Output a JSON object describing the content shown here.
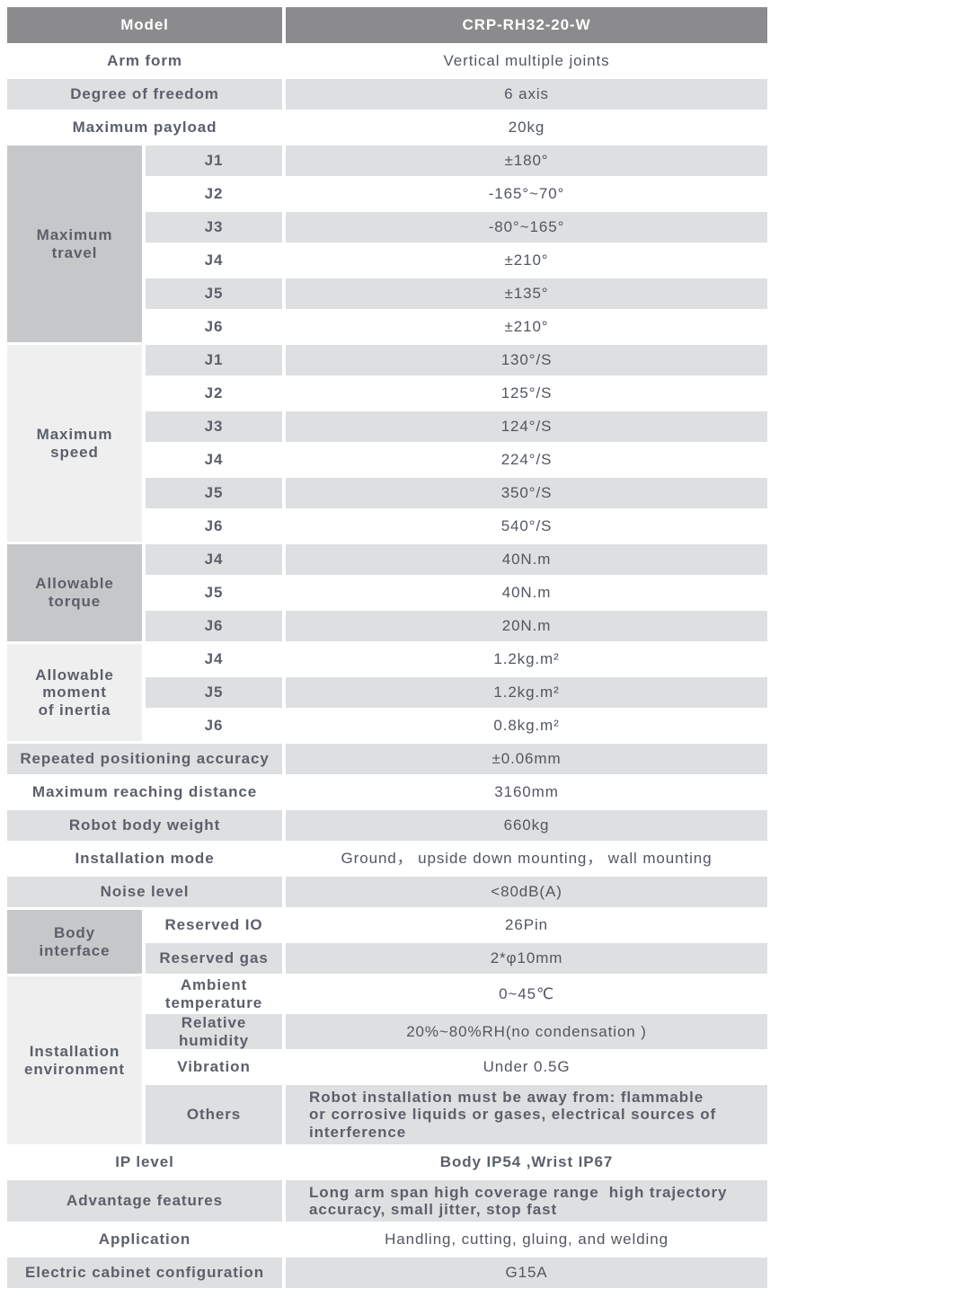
{
  "colors": {
    "header_bg": "#8b8b8d",
    "header_text": "#ffffff",
    "row_gray": "#dedfe0",
    "row_white": "#ffffff",
    "group_cell_dark": "#c6c7c9",
    "group_cell_light": "#efeff0",
    "label_text": "#5b606a",
    "value_text": "#52575f"
  },
  "table": {
    "rows": [
      {
        "kind": "header",
        "size": "hdr",
        "label": "Model",
        "value": "CRP-RH32-20-W"
      },
      {
        "kind": "single",
        "shade": "w",
        "label": "Arm form",
        "value": "Vertical multiple joints"
      },
      {
        "kind": "single",
        "shade": "g",
        "label": "Degree of freedom",
        "value": "6 axis"
      },
      {
        "kind": "single",
        "shade": "w",
        "label": "Maximum payload",
        "value": "20kg"
      },
      {
        "kind": "group",
        "shade": "g",
        "group": {
          "label": "Maximum\ntravel",
          "span": 6,
          "tone": "dark"
        },
        "sub": "J1",
        "value": "±180°"
      },
      {
        "kind": "group",
        "shade": "w",
        "sub": "J2",
        "value": "-165°~70°"
      },
      {
        "kind": "group",
        "shade": "g",
        "sub": "J3",
        "value": "-80°~165°"
      },
      {
        "kind": "group",
        "shade": "w",
        "sub": "J4",
        "value": "±210°"
      },
      {
        "kind": "group",
        "shade": "g",
        "sub": "J5",
        "value": "±135°"
      },
      {
        "kind": "group",
        "shade": "w",
        "sub": "J6",
        "value": "±210°"
      },
      {
        "kind": "group",
        "shade": "g",
        "group": {
          "label": "Maximum\nspeed",
          "span": 6,
          "tone": "light"
        },
        "sub": "J1",
        "value": "130°/S"
      },
      {
        "kind": "group",
        "shade": "w",
        "sub": "J2",
        "value": "125°/S"
      },
      {
        "kind": "group",
        "shade": "g",
        "sub": "J3",
        "value": "124°/S"
      },
      {
        "kind": "group",
        "shade": "w",
        "sub": "J4",
        "value": "224°/S"
      },
      {
        "kind": "group",
        "shade": "g",
        "sub": "J5",
        "value": "350°/S"
      },
      {
        "kind": "group",
        "shade": "w",
        "sub": "J6",
        "value": "540°/S"
      },
      {
        "kind": "group",
        "shade": "g",
        "group": {
          "label": "Allowable\ntorque",
          "span": 3,
          "tone": "dark"
        },
        "sub": "J4",
        "value": "40N.m"
      },
      {
        "kind": "group",
        "shade": "w",
        "sub": "J5",
        "value": "40N.m"
      },
      {
        "kind": "group",
        "shade": "g",
        "sub": "J6",
        "value": "20N.m"
      },
      {
        "kind": "group",
        "shade": "w",
        "group": {
          "label": "Allowable\nmoment\nof inertia",
          "span": 3,
          "tone": "light"
        },
        "sub": "J4",
        "value": "1.2kg.m²"
      },
      {
        "kind": "group",
        "shade": "g",
        "sub": "J5",
        "value": "1.2kg.m²"
      },
      {
        "kind": "group",
        "shade": "w",
        "sub": "J6",
        "value": "0.8kg.m²"
      },
      {
        "kind": "single",
        "shade": "g",
        "label": "Repeated positioning accuracy",
        "value": "±0.06mm"
      },
      {
        "kind": "single",
        "shade": "w",
        "label": "Maximum reaching distance",
        "value": "3160mm"
      },
      {
        "kind": "single",
        "shade": "g",
        "label": "Robot body weight",
        "value": "660kg"
      },
      {
        "kind": "single",
        "shade": "w",
        "label": "Installation mode",
        "value": "Ground， upside down mounting， wall mounting"
      },
      {
        "kind": "single",
        "shade": "g",
        "label": "Noise level",
        "value": "<80dB(A)"
      },
      {
        "kind": "group",
        "shade": "w",
        "group": {
          "label": "Body\ninterface",
          "span": 2,
          "tone": "dark"
        },
        "sub": "Reserved IO",
        "value": "26Pin"
      },
      {
        "kind": "group",
        "shade": "g",
        "sub": "Reserved gas",
        "value": "2*φ10mm"
      },
      {
        "kind": "group",
        "shade": "w",
        "group": {
          "label": "Installation\nenvironment",
          "span": 4,
          "tone": "light"
        },
        "sub": "Ambient\ntemperature",
        "value": "0~45℃"
      },
      {
        "kind": "group",
        "shade": "g",
        "sub": "Relative\nhumidity",
        "value": "20%~80%RH(no condensation )"
      },
      {
        "kind": "group",
        "shade": "w",
        "sub": "Vibration",
        "value": "Under 0.5G"
      },
      {
        "kind": "group",
        "shade": "g",
        "size": "tall",
        "align": "left",
        "bold": true,
        "sub": "Others",
        "value": "Robot installation must be away from: flammable\nor corrosive liquids or gases, electrical sources of\ninterference"
      },
      {
        "kind": "single",
        "shade": "w",
        "label": "IP level",
        "bold": true,
        "value": "Body IP54 ,Wrist IP67"
      },
      {
        "kind": "single",
        "shade": "g",
        "size": "med",
        "align": "left",
        "bold": true,
        "label": "Advantage features",
        "value": "Long arm span high coverage range  high trajectory\naccuracy, small jitter, stop fast"
      },
      {
        "kind": "single",
        "shade": "w",
        "label": "Application",
        "value": "Handling, cutting, gluing, and welding"
      },
      {
        "kind": "single",
        "shade": "g",
        "label": "Electric cabinet configuration",
        "value": "G15A"
      }
    ]
  }
}
